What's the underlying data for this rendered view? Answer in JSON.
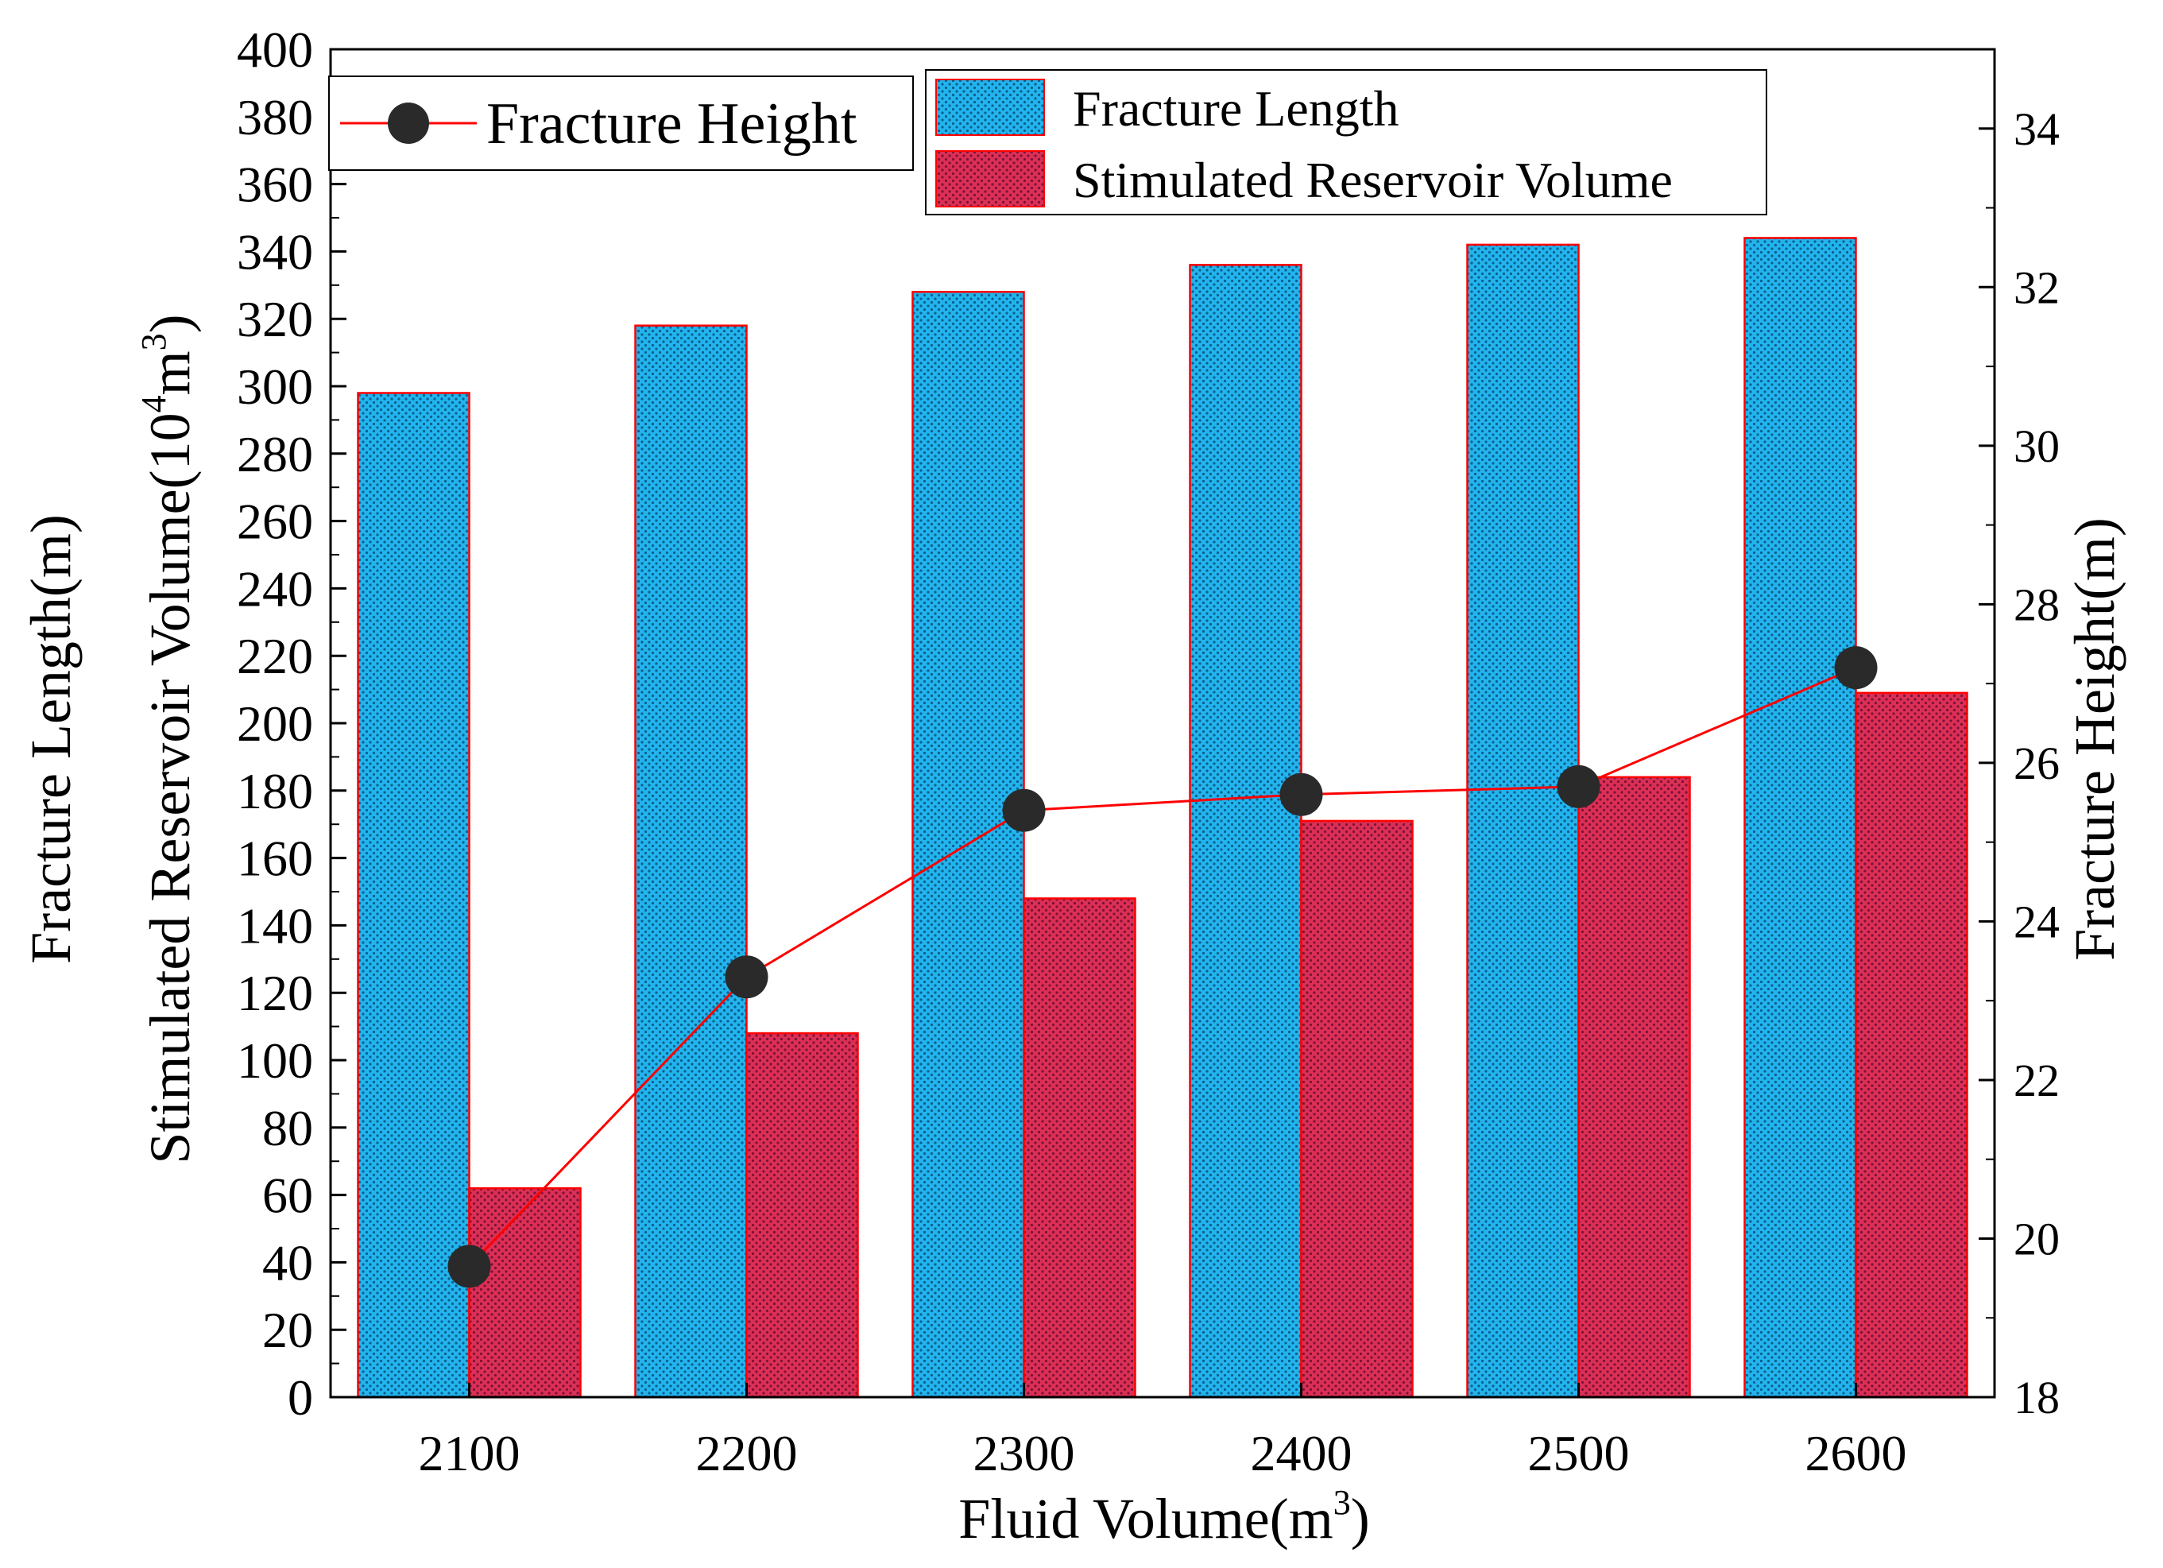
{
  "chart_data": {
    "type": "bar",
    "categories": [
      "2100",
      "2200",
      "2300",
      "2400",
      "2500",
      "2600"
    ],
    "series": [
      {
        "name": "Fracture Length",
        "type": "bar",
        "axis": "left",
        "values": [
          298,
          318,
          328,
          336,
          342,
          344
        ],
        "color": "#1aa8e6"
      },
      {
        "name": "Stimulated Reservoir Volume",
        "type": "bar",
        "axis": "left",
        "values": [
          62,
          108,
          148,
          171,
          184,
          209
        ],
        "color": "#d6244a"
      },
      {
        "name": "Fracture Height",
        "type": "line",
        "axis": "right",
        "values": [
          19.65,
          23.3,
          25.4,
          25.6,
          25.7,
          27.2
        ],
        "color": "#ff0000",
        "marker_color": "#2a2a2a"
      }
    ],
    "xlabel": "Fluid Volume(m",
    "xlabel_sup": "3",
    "xlabel_end": ")",
    "ylabel_left_line1": "Fracture Length(m)",
    "ylabel_left_line2": "Stimulated Reservoir Volume(10",
    "ylabel_left_sup1": "4",
    "ylabel_left_mid": "m",
    "ylabel_left_sup2": "3",
    "ylabel_left_end": ")",
    "ylabel_right": "Fracture Height(m)",
    "ylim_left": [
      0,
      400
    ],
    "yticks_left": [
      0,
      20,
      40,
      60,
      80,
      100,
      120,
      140,
      160,
      180,
      200,
      220,
      240,
      260,
      280,
      300,
      320,
      340,
      360,
      380,
      400
    ],
    "ylim_right": [
      18,
      35
    ],
    "yticks_right": [
      18,
      20,
      22,
      24,
      26,
      28,
      30,
      32,
      34
    ],
    "legend": {
      "line_entry": "Fracture Height",
      "bar_entries": [
        "Fracture Length",
        "Stimulated Reservoir Volume"
      ],
      "placement": "top"
    },
    "grid": false
  }
}
